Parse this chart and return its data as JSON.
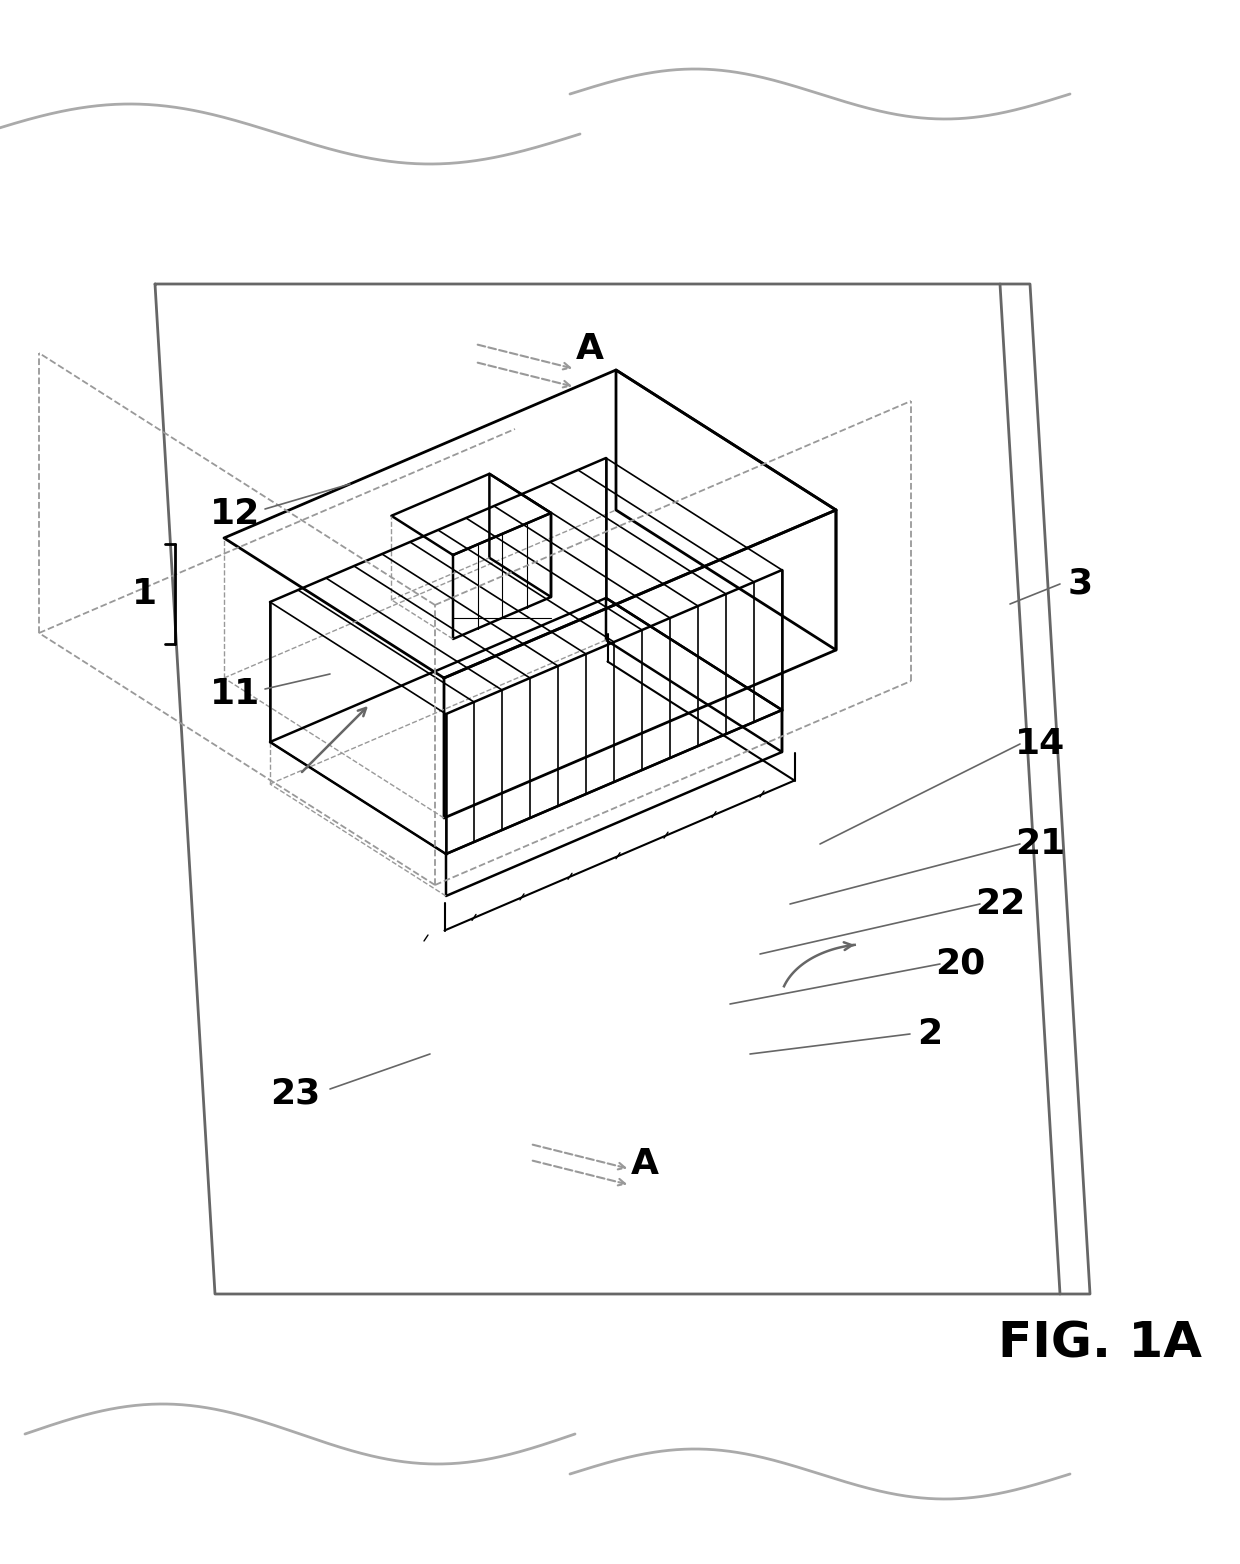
{
  "bg_color": "#ffffff",
  "line_color": "#000000",
  "gray_color": "#666666",
  "dashed_color": "#999999",
  "fig_width": 12.4,
  "fig_height": 15.64,
  "fig_label": "FIG. 1A"
}
